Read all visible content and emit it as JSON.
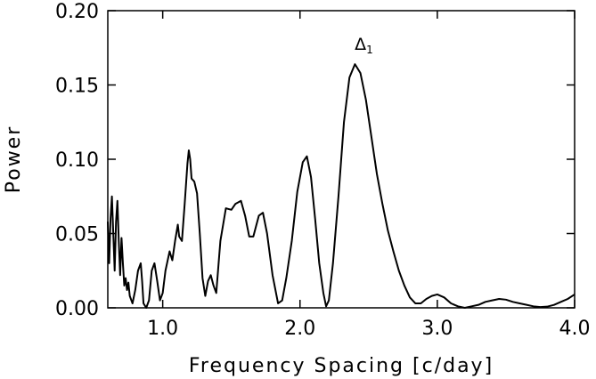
{
  "chart_data": {
    "type": "line",
    "xlabel": "Frequency Spacing [c/day]",
    "ylabel": "Power",
    "xlim": [
      0.6,
      4.0
    ],
    "ylim": [
      0.0,
      0.2
    ],
    "x_ticks": [
      {
        "value": 1.0,
        "label": "1.0"
      },
      {
        "value": 2.0,
        "label": "2.0"
      },
      {
        "value": 3.0,
        "label": "3.0"
      },
      {
        "value": 4.0,
        "label": "4.0"
      }
    ],
    "y_ticks": [
      {
        "value": 0.0,
        "label": "0.00"
      },
      {
        "value": 0.05,
        "label": "0.05"
      },
      {
        "value": 0.1,
        "label": "0.10"
      },
      {
        "value": 0.15,
        "label": "0.15"
      },
      {
        "value": 0.2,
        "label": "0.20"
      }
    ],
    "grid": false,
    "annotations": [
      {
        "text": "Δ",
        "subscript": "1",
        "x": 2.4,
        "y": 0.164
      }
    ],
    "series": [
      {
        "color": "#000000",
        "points": [
          [
            0.6,
            0.058
          ],
          [
            0.61,
            0.03
          ],
          [
            0.62,
            0.06
          ],
          [
            0.63,
            0.075
          ],
          [
            0.64,
            0.05
          ],
          [
            0.65,
            0.025
          ],
          [
            0.66,
            0.058
          ],
          [
            0.67,
            0.072
          ],
          [
            0.68,
            0.045
          ],
          [
            0.69,
            0.022
          ],
          [
            0.7,
            0.047
          ],
          [
            0.71,
            0.03
          ],
          [
            0.72,
            0.015
          ],
          [
            0.73,
            0.02
          ],
          [
            0.74,
            0.012
          ],
          [
            0.75,
            0.017
          ],
          [
            0.76,
            0.008
          ],
          [
            0.78,
            0.003
          ],
          [
            0.8,
            0.012
          ],
          [
            0.82,
            0.025
          ],
          [
            0.84,
            0.03
          ],
          [
            0.85,
            0.018
          ],
          [
            0.86,
            0.003
          ],
          [
            0.88,
            0.0
          ],
          [
            0.9,
            0.005
          ],
          [
            0.92,
            0.025
          ],
          [
            0.94,
            0.03
          ],
          [
            0.96,
            0.018
          ],
          [
            0.98,
            0.005
          ],
          [
            1.0,
            0.01
          ],
          [
            1.02,
            0.025
          ],
          [
            1.05,
            0.038
          ],
          [
            1.07,
            0.032
          ],
          [
            1.09,
            0.045
          ],
          [
            1.11,
            0.056
          ],
          [
            1.12,
            0.048
          ],
          [
            1.14,
            0.045
          ],
          [
            1.16,
            0.07
          ],
          [
            1.18,
            0.097
          ],
          [
            1.19,
            0.106
          ],
          [
            1.2,
            0.1
          ],
          [
            1.21,
            0.087
          ],
          [
            1.23,
            0.085
          ],
          [
            1.25,
            0.077
          ],
          [
            1.27,
            0.05
          ],
          [
            1.29,
            0.02
          ],
          [
            1.31,
            0.008
          ],
          [
            1.33,
            0.018
          ],
          [
            1.35,
            0.022
          ],
          [
            1.37,
            0.015
          ],
          [
            1.39,
            0.01
          ],
          [
            1.42,
            0.045
          ],
          [
            1.46,
            0.067
          ],
          [
            1.5,
            0.066
          ],
          [
            1.53,
            0.07
          ],
          [
            1.57,
            0.072
          ],
          [
            1.6,
            0.062
          ],
          [
            1.63,
            0.048
          ],
          [
            1.66,
            0.048
          ],
          [
            1.7,
            0.062
          ],
          [
            1.73,
            0.064
          ],
          [
            1.76,
            0.05
          ],
          [
            1.8,
            0.022
          ],
          [
            1.84,
            0.003
          ],
          [
            1.87,
            0.005
          ],
          [
            1.9,
            0.02
          ],
          [
            1.94,
            0.045
          ],
          [
            1.98,
            0.078
          ],
          [
            2.02,
            0.098
          ],
          [
            2.05,
            0.102
          ],
          [
            2.08,
            0.088
          ],
          [
            2.11,
            0.06
          ],
          [
            2.14,
            0.03
          ],
          [
            2.17,
            0.01
          ],
          [
            2.19,
            0.001
          ],
          [
            2.21,
            0.005
          ],
          [
            2.24,
            0.03
          ],
          [
            2.28,
            0.075
          ],
          [
            2.32,
            0.125
          ],
          [
            2.36,
            0.155
          ],
          [
            2.4,
            0.164
          ],
          [
            2.44,
            0.158
          ],
          [
            2.48,
            0.14
          ],
          [
            2.52,
            0.115
          ],
          [
            2.56,
            0.09
          ],
          [
            2.6,
            0.07
          ],
          [
            2.64,
            0.052
          ],
          [
            2.68,
            0.038
          ],
          [
            2.72,
            0.025
          ],
          [
            2.76,
            0.015
          ],
          [
            2.8,
            0.007
          ],
          [
            2.84,
            0.003
          ],
          [
            2.88,
            0.003
          ],
          [
            2.92,
            0.006
          ],
          [
            2.96,
            0.008
          ],
          [
            3.0,
            0.009
          ],
          [
            3.05,
            0.007
          ],
          [
            3.1,
            0.003
          ],
          [
            3.15,
            0.001
          ],
          [
            3.2,
            0.0
          ],
          [
            3.25,
            0.001
          ],
          [
            3.3,
            0.002
          ],
          [
            3.35,
            0.004
          ],
          [
            3.4,
            0.005
          ],
          [
            3.45,
            0.006
          ],
          [
            3.5,
            0.0055
          ],
          [
            3.55,
            0.004
          ],
          [
            3.6,
            0.003
          ],
          [
            3.65,
            0.002
          ],
          [
            3.7,
            0.001
          ],
          [
            3.75,
            0.0005
          ],
          [
            3.8,
            0.0008
          ],
          [
            3.85,
            0.002
          ],
          [
            3.9,
            0.004
          ],
          [
            3.95,
            0.006
          ],
          [
            4.0,
            0.009
          ]
        ]
      }
    ]
  }
}
